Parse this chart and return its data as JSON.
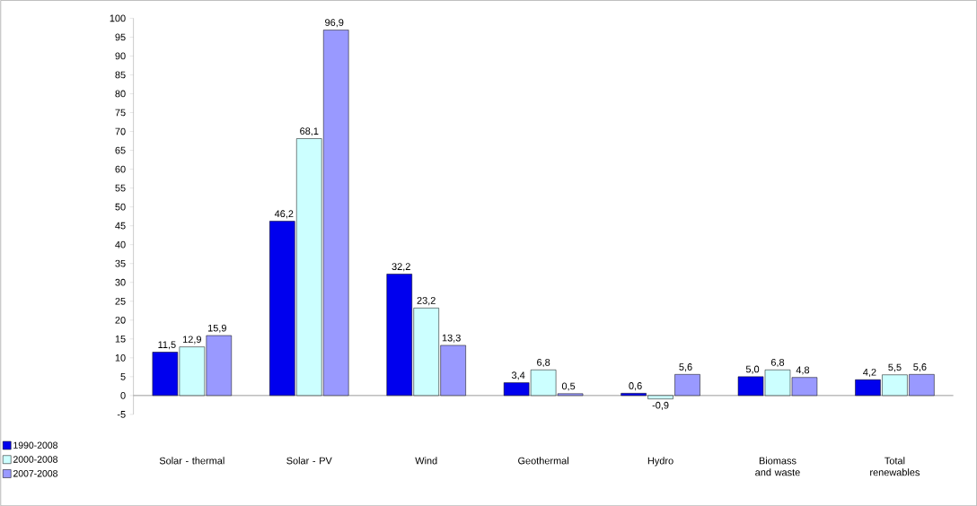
{
  "chart_data": {
    "type": "bar",
    "categories": [
      "Solar - thermal",
      "Solar - PV",
      "Wind",
      "Geothermal",
      "Hydro",
      "Biomass and waste",
      "Total renewables"
    ],
    "series": [
      {
        "name": "1990-2008",
        "color": "#0000ee",
        "values": [
          11.5,
          46.2,
          32.2,
          3.4,
          0.6,
          5.0,
          4.2
        ],
        "value_labels": [
          "11,5",
          "46,2",
          "32,2",
          "3,4",
          "0,6",
          "5,0",
          "4,2"
        ]
      },
      {
        "name": "2000-2008",
        "color": "#ccffff",
        "values": [
          12.9,
          68.1,
          23.2,
          6.8,
          -0.9,
          6.8,
          5.5
        ],
        "value_labels": [
          "12,9",
          "68,1",
          "23,2",
          "6,8",
          "-0,9",
          "6,8",
          "5,5"
        ]
      },
      {
        "name": "2007-2008",
        "color": "#9999ff",
        "values": [
          15.9,
          96.9,
          13.3,
          0.5,
          5.6,
          4.8,
          5.6
        ],
        "value_labels": [
          "15,9",
          "96,9",
          "13,3",
          "0,5",
          "5,6",
          "4,8",
          "5,6"
        ]
      }
    ],
    "ylim": [
      -5,
      100
    ],
    "yticks": [
      -5,
      0,
      5,
      10,
      15,
      20,
      25,
      30,
      35,
      40,
      45,
      50,
      55,
      60,
      65,
      70,
      75,
      80,
      85,
      90,
      95,
      100
    ],
    "ref_lines": [
      {
        "axis": "y",
        "value": 0,
        "color": "#808080"
      }
    ],
    "legend": "bottom left",
    "grid": false
  }
}
